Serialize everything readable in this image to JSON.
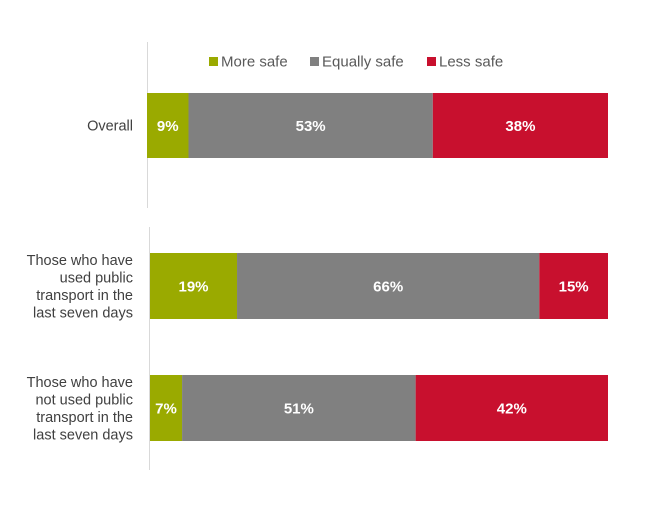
{
  "chart_data": {
    "type": "bar",
    "orientation": "horizontal",
    "stacked": true,
    "percent_stacked": true,
    "legend_position": "top",
    "grid": false,
    "xlim": [
      0,
      100
    ],
    "colors": [
      "#9aaa00",
      "#808080",
      "#c8102e"
    ],
    "series": [
      {
        "name": "More safe",
        "values": [
          9,
          19,
          7
        ]
      },
      {
        "name": "Equally safe",
        "values": [
          53,
          66,
          51
        ]
      },
      {
        "name": "Less safe",
        "values": [
          38,
          15,
          42
        ]
      }
    ],
    "categories": [
      [
        "Overall"
      ],
      [
        "Those who have",
        "used public",
        "transport in the",
        "last seven days"
      ],
      [
        "Those who have",
        "not used public",
        "transport in the",
        "last seven days"
      ]
    ]
  }
}
